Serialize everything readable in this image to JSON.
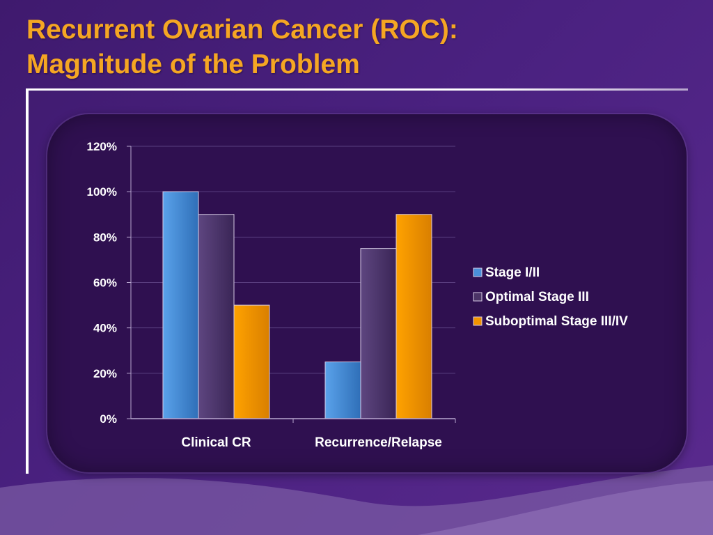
{
  "slide": {
    "title_line1": "Recurrent Ovarian Cancer (ROC):",
    "title_line2": "Magnitude of the Problem"
  },
  "colors": {
    "title": "#f5a623",
    "stage_1_2": "#4a90d9",
    "optimal_stage_3": "#4b3466",
    "suboptimal_stage_3_4": "#f29400",
    "panel": "#2f1050"
  },
  "chart_data": {
    "type": "bar",
    "categories": [
      "Clinical CR",
      "Recurrence/Relapse"
    ],
    "series": [
      {
        "name": "Stage I/II",
        "values": [
          100,
          25
        ]
      },
      {
        "name": "Optimal Stage III",
        "values": [
          90,
          75
        ]
      },
      {
        "name": "Suboptimal Stage III/IV",
        "values": [
          50,
          90
        ]
      }
    ],
    "yticks": [
      "0%",
      "20%",
      "40%",
      "60%",
      "80%",
      "100%",
      "120%"
    ],
    "ylim": [
      0,
      120
    ],
    "unit": "%",
    "grid": true,
    "legend": "right"
  }
}
